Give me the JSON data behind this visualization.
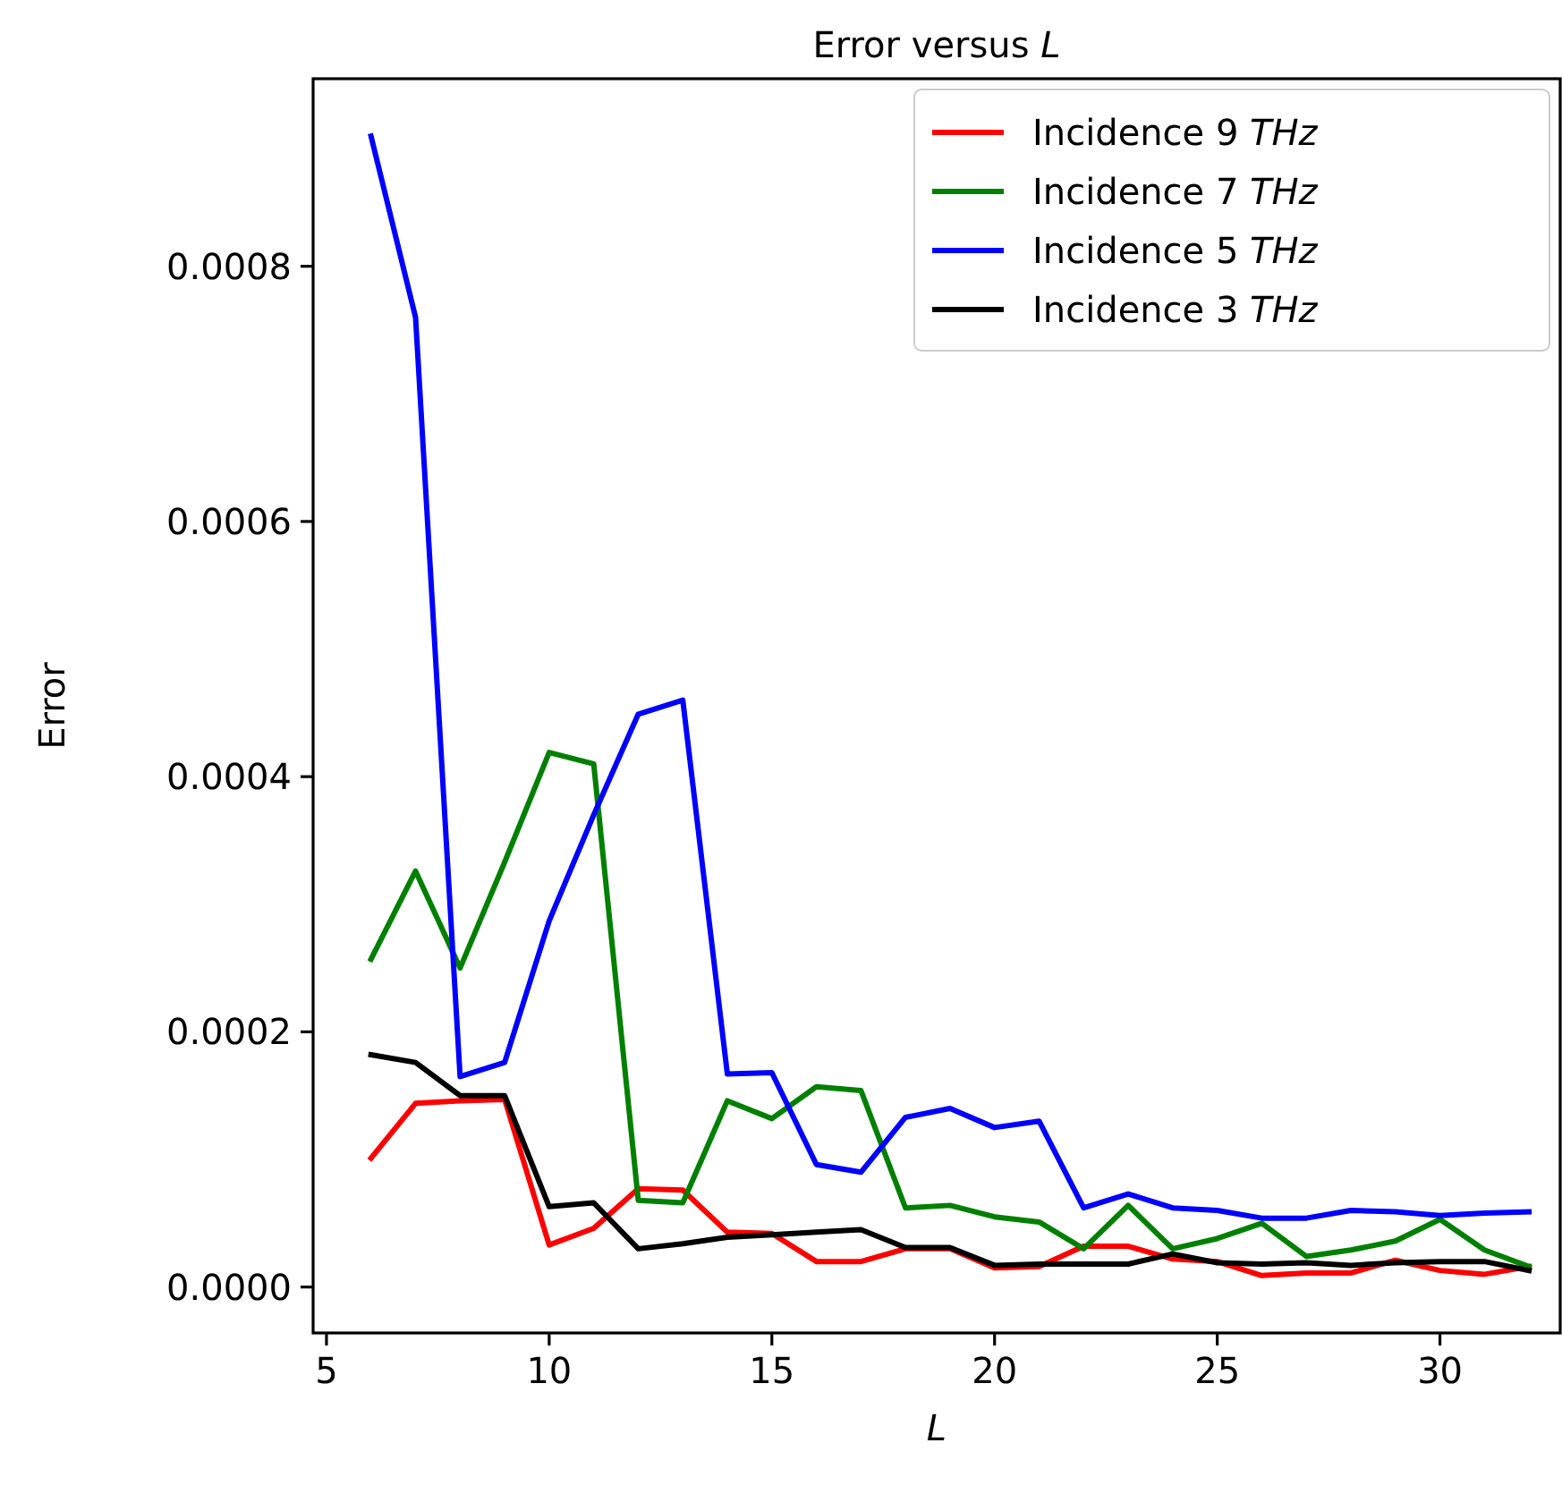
{
  "chart_data": {
    "type": "line",
    "title": "Error versus L",
    "xlabel": "L",
    "ylabel": "Error",
    "x": [
      6,
      7,
      8,
      9,
      10,
      11,
      12,
      13,
      14,
      15,
      16,
      17,
      18,
      19,
      20,
      21,
      22,
      23,
      24,
      25,
      26,
      27,
      28,
      29,
      30,
      31,
      32
    ],
    "series": [
      {
        "name": "Incidence 9 THz",
        "color": "#ff0000",
        "values": [
          0.000101,
          0.000144,
          0.000146,
          0.000147,
          3.3e-05,
          4.6e-05,
          7.7e-05,
          7.6e-05,
          4.3e-05,
          4.2e-05,
          2e-05,
          2e-05,
          3e-05,
          3e-05,
          1.5e-05,
          1.6e-05,
          3.2e-05,
          3.2e-05,
          2.2e-05,
          2e-05,
          9e-06,
          1.1e-05,
          1.1e-05,
          2.1e-05,
          1.3e-05,
          1e-05,
          1.6e-05
        ]
      },
      {
        "name": "Incidence 7 THz",
        "color": "#008000",
        "values": [
          0.000257,
          0.000326,
          0.00025,
          0.000333,
          0.000419,
          0.00041,
          6.8e-05,
          6.6e-05,
          0.000146,
          0.000132,
          0.000157,
          0.000154,
          6.2e-05,
          6.4e-05,
          5.5e-05,
          5.1e-05,
          3e-05,
          6.4e-05,
          3e-05,
          3.8e-05,
          5e-05,
          2.4e-05,
          2.9e-05,
          3.6e-05,
          5.3e-05,
          2.9e-05,
          1.6e-05
        ]
      },
      {
        "name": "Incidence 5 THz",
        "color": "#0000ff",
        "values": [
          0.000902,
          0.00076,
          0.000165,
          0.000176,
          0.000287,
          0.00037,
          0.000449,
          0.00046,
          0.000167,
          0.000168,
          9.6e-05,
          9e-05,
          0.000133,
          0.00014,
          0.000125,
          0.00013,
          6.2e-05,
          7.3e-05,
          6.2e-05,
          6e-05,
          5.4e-05,
          5.4e-05,
          6e-05,
          5.9e-05,
          5.6e-05,
          5.8e-05,
          5.9e-05
        ]
      },
      {
        "name": "Incidence 3 THz",
        "color": "#000000",
        "values": [
          0.000182,
          0.000176,
          0.00015,
          0.00015,
          6.3e-05,
          6.6e-05,
          3e-05,
          3.4e-05,
          3.9e-05,
          4.1e-05,
          4.3e-05,
          4.5e-05,
          3.1e-05,
          3.1e-05,
          1.7e-05,
          1.8e-05,
          1.8e-05,
          1.8e-05,
          2.6e-05,
          1.9e-05,
          1.8e-05,
          1.9e-05,
          1.7e-05,
          1.9e-05,
          2e-05,
          2e-05,
          1.3e-05
        ]
      }
    ],
    "xlim": [
      4.7,
      32.7
    ],
    "ylim": [
      -3.6e-05,
      0.000947
    ],
    "xticks": [
      5,
      10,
      15,
      20,
      25,
      30
    ],
    "yticks": [
      {
        "value": 0,
        "label": "0.0000"
      },
      {
        "value": 0.0002,
        "label": "0.0002"
      },
      {
        "value": 0.0004,
        "label": "0.0004"
      },
      {
        "value": 0.0006,
        "label": "0.0006"
      },
      {
        "value": 0.0008,
        "label": "0.0008"
      }
    ],
    "legend": "top right",
    "grid": false,
    "marker": "none",
    "line_style": "solid"
  }
}
